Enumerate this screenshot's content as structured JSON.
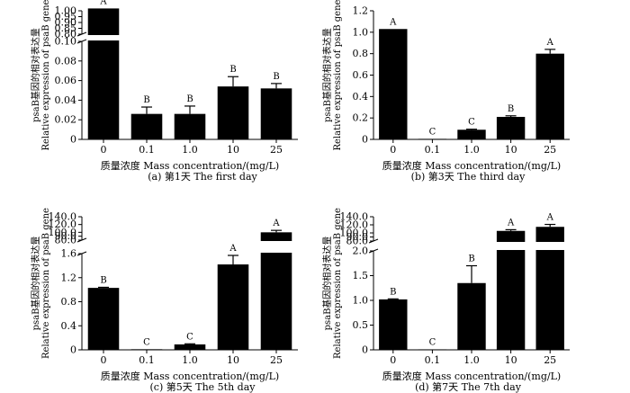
{
  "panels": {
    "a": {
      "caption": "(a)  第1天  The first day"
    },
    "b": {
      "caption": "(b)  第3天  The third day"
    },
    "c": {
      "caption": "(c)  第5天  The 5th day"
    },
    "d": {
      "caption": "(d)  第7天  The 7th day"
    }
  },
  "chart_data": [
    {
      "type": "bar",
      "panel": "a",
      "categories": [
        "0",
        "0.1",
        "1.0",
        "10",
        "25"
      ],
      "values": [
        1.02,
        0.026,
        0.026,
        0.054,
        0.052
      ],
      "errors": [
        0.0,
        0.007,
        0.008,
        0.01,
        0.005
      ],
      "significance": [
        "A",
        "B",
        "B",
        "B",
        "B"
      ],
      "axis_break": {
        "lower": [
          0,
          0.1
        ],
        "upper": [
          0.8,
          1.0
        ],
        "lower_ticks": [
          "0",
          "0.02",
          "0.04",
          "0.06",
          "0.08",
          "0.10"
        ],
        "upper_ticks": [
          "0.80",
          "0.85",
          "0.90",
          "0.95",
          "1.00"
        ]
      },
      "xlabel": "质量浓度  Mass concentration/(mg/L)",
      "ylabel_cn": "psaB基因的相对表达量",
      "ylabel_en": "Relative expression of psaB gene"
    },
    {
      "type": "bar",
      "panel": "b",
      "categories": [
        "0",
        "0.1",
        "1.0",
        "10",
        "25"
      ],
      "values": [
        1.03,
        0.005,
        0.09,
        0.21,
        0.8
      ],
      "errors": [
        0.0,
        0.0,
        0.005,
        0.01,
        0.04
      ],
      "significance": [
        "A",
        "C",
        "C",
        "B",
        "A"
      ],
      "ylim": [
        0,
        1.2
      ],
      "yticks": [
        "0",
        "0.2",
        "0.4",
        "0.6",
        "0.8",
        "1.0",
        "1.2"
      ],
      "xlabel": "质量浓度  Mass concentration/(mg/L)",
      "ylabel_cn": "psaB基因的相对表达量",
      "ylabel_en": "Relative expression of psaB gene"
    },
    {
      "type": "bar",
      "panel": "c",
      "categories": [
        "0",
        "0.1",
        "1.0",
        "10",
        "25"
      ],
      "values": [
        1.03,
        0.01,
        0.09,
        1.42,
        100.0
      ],
      "errors": [
        0.01,
        0.0,
        0.01,
        0.15,
        5.0
      ],
      "significance": [
        "B",
        "C",
        "C",
        "A",
        "A"
      ],
      "axis_break": {
        "lower": [
          0,
          1.6
        ],
        "upper": [
          80,
          140
        ],
        "lower_ticks": [
          "0",
          "0.4",
          "0.8",
          "1.2",
          "1.6"
        ],
        "upper_ticks": [
          "80.0",
          "90.0",
          "100.0",
          "120.0",
          "140.0"
        ]
      },
      "xlabel": "质量浓度  Mass concentration/(mg/L)",
      "ylabel_cn": "psaB基因的相对表达量",
      "ylabel_en": "Relative expression of psaB gene"
    },
    {
      "type": "bar",
      "panel": "d",
      "categories": [
        "0",
        "0.1",
        "1.0",
        "10",
        "25"
      ],
      "values": [
        1.02,
        0.01,
        1.35,
        105.0,
        115.0
      ],
      "errors": [
        0.01,
        0.0,
        0.35,
        3.0,
        6.0
      ],
      "significance": [
        "B",
        "C",
        "B",
        "A",
        "A"
      ],
      "axis_break": {
        "lower": [
          0,
          2.0
        ],
        "upper": [
          80,
          140
        ],
        "lower_ticks": [
          "0",
          "0.5",
          "1.0",
          "1.5",
          "2.0"
        ],
        "upper_ticks": [
          "80.0",
          "90.0",
          "100.0",
          "120.0",
          "140.0"
        ]
      },
      "xlabel": "质量浓度  Mass concentration/(mg/L)",
      "ylabel_cn": "psaB基因的相对表达量",
      "ylabel_en": "Relative expression of psaB gene"
    }
  ]
}
